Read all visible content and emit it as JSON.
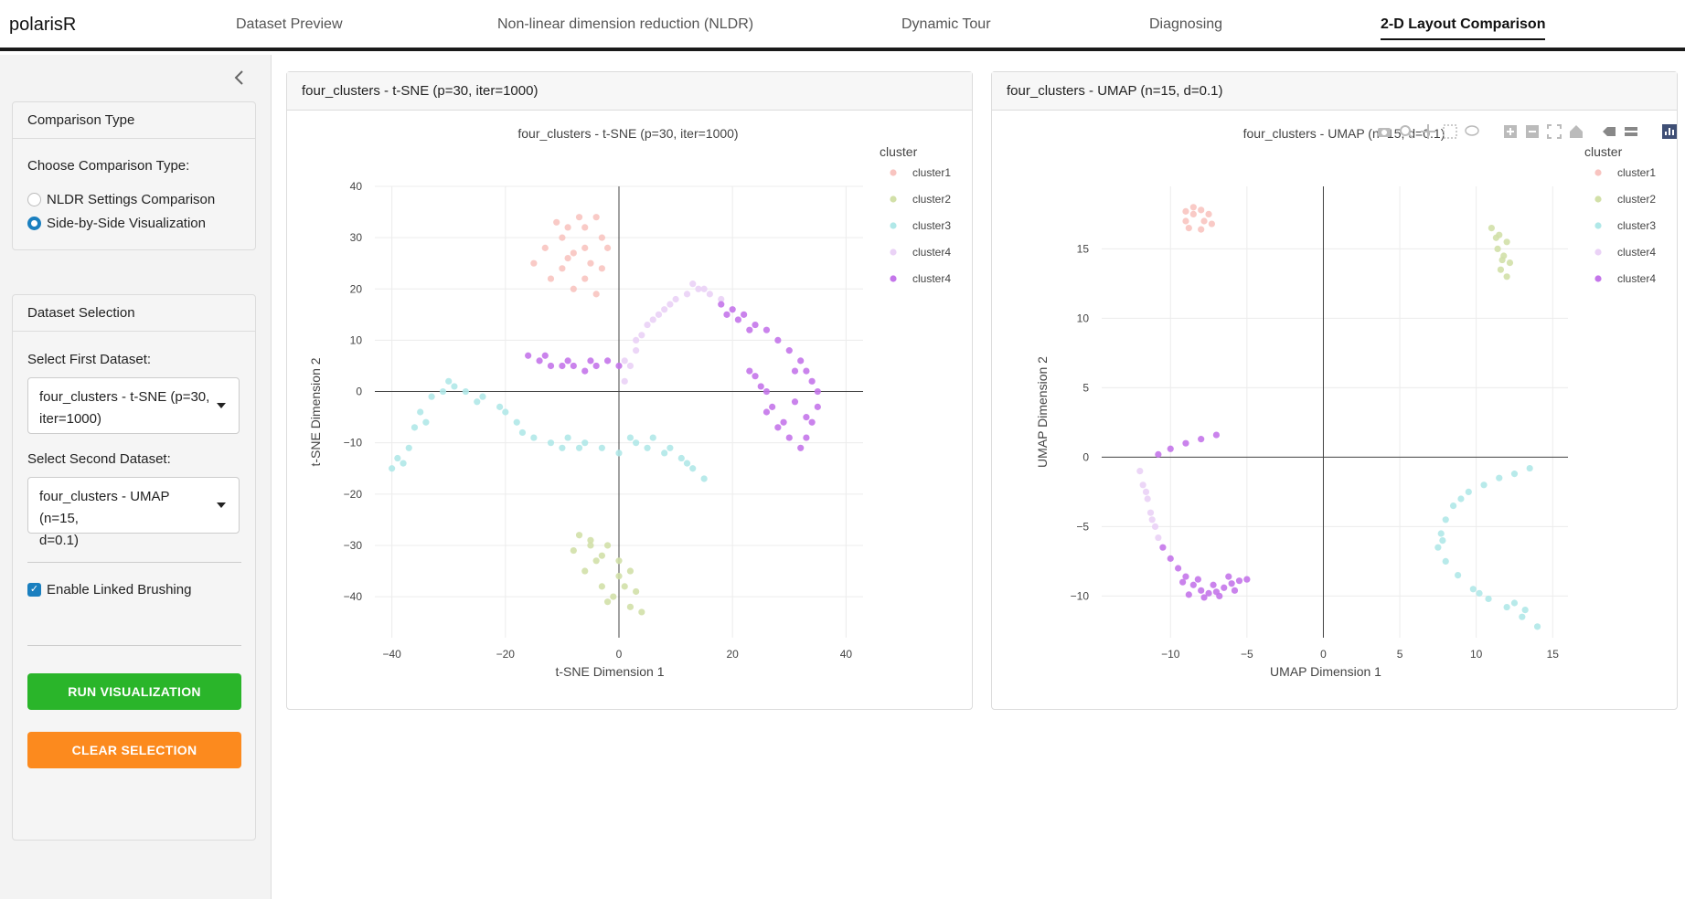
{
  "brand": "polarisR",
  "nav": {
    "tabs": [
      {
        "label": "Dataset Preview"
      },
      {
        "label": "Non-linear dimension reduction (NLDR)"
      },
      {
        "label": "Dynamic Tour"
      },
      {
        "label": "Diagnosing"
      },
      {
        "label": "2-D Layout Comparison"
      }
    ],
    "active": "2-D Layout Comparison"
  },
  "sidebar": {
    "collapse_icon": "chevron-left-icon",
    "comparison": {
      "title": "Comparison Type",
      "prompt": "Choose Comparison Type:",
      "options": [
        "NLDR Settings Comparison",
        "Side-by-Side Visualization"
      ],
      "selected": "Side-by-Side Visualization"
    },
    "dataset": {
      "title": "Dataset Selection",
      "first_label": "Select First Dataset:",
      "first_value_l1": "four_clusters - t-SNE (p=30,",
      "first_value_l2": "iter=1000)",
      "second_label": "Select Second Dataset:",
      "second_value_l1": "four_clusters - UMAP (n=15,",
      "second_value_l2": "d=0.1)",
      "linked_label": "Enable Linked Brushing",
      "linked_checked": true,
      "run_label": "RUN VISUALIZATION",
      "clear_label": "CLEAR SELECTION",
      "run_color": "#2ab52a",
      "clear_color": "#fc8a1e"
    }
  },
  "colors": {
    "cluster1": "#f8c4c0",
    "cluster2": "#d2e0a8",
    "cluster3": "#b0e8e8",
    "cluster4a": "#ead2f6",
    "cluster4b": "#c476ea"
  },
  "panels": {
    "left": {
      "header": "four_clusters - t-SNE (p=30, iter=1000)"
    },
    "right": {
      "header": "four_clusters - UMAP (n=15, d=0.1)"
    }
  },
  "modebar_icons": [
    "camera-icon",
    "zoom-icon",
    "pan-icon",
    "box-select-icon",
    "lasso-icon",
    "zoom-in-icon",
    "zoom-out-icon",
    "autoscale-icon",
    "home-icon",
    "hover-closest-icon",
    "hover-compare-icon",
    "plotly-logo-icon"
  ],
  "chart_data": [
    {
      "type": "scatter",
      "title": "four_clusters - t-SNE (p=30, iter=1000)",
      "xlabel": "t-SNE Dimension 1",
      "ylabel": "t-SNE Dimension 2",
      "xlim": [
        -43,
        43
      ],
      "ylim": [
        -48,
        40
      ],
      "xticks": [
        -40,
        -20,
        0,
        20,
        40
      ],
      "yticks": [
        -40,
        -30,
        -20,
        -10,
        0,
        10,
        20,
        30,
        40
      ],
      "legend_title": "cluster",
      "legend_position": "top-right",
      "grid": true,
      "series": [
        {
          "name": "cluster1",
          "color": "#f8c4c0",
          "points": [
            [
              -10,
              30
            ],
            [
              -8,
              27
            ],
            [
              -6,
              32
            ],
            [
              -4,
              34
            ],
            [
              -6,
              22
            ],
            [
              -10,
              24
            ],
            [
              -13,
              28
            ],
            [
              -12,
              22
            ],
            [
              -8,
              20
            ],
            [
              -5,
              25
            ],
            [
              -3,
              30
            ],
            [
              -2,
              28
            ],
            [
              -4,
              19
            ],
            [
              -9,
              32
            ],
            [
              -7,
              34
            ],
            [
              -15,
              25
            ],
            [
              -11,
              33
            ],
            [
              -3,
              24
            ],
            [
              -6,
              28
            ],
            [
              -9,
              26
            ]
          ]
        },
        {
          "name": "cluster2",
          "color": "#d2e0a8",
          "points": [
            [
              -7,
              -28
            ],
            [
              -5,
              -29
            ],
            [
              -3,
              -32
            ],
            [
              -6,
              -35
            ],
            [
              -2,
              -30
            ],
            [
              0,
              -36
            ],
            [
              -1,
              -40
            ],
            [
              2,
              -42
            ],
            [
              4,
              -43
            ],
            [
              -4,
              -33
            ],
            [
              1,
              -38
            ],
            [
              3,
              -39
            ],
            [
              -8,
              -31
            ],
            [
              -3,
              -38
            ],
            [
              0,
              -33
            ],
            [
              -5,
              -30
            ],
            [
              2,
              -35
            ],
            [
              -2,
              -41
            ]
          ]
        },
        {
          "name": "cluster3",
          "color": "#b0e8e8",
          "points": [
            [
              -40,
              -15
            ],
            [
              -38,
              -14
            ],
            [
              -37,
              -11
            ],
            [
              -36,
              -7
            ],
            [
              -35,
              -4
            ],
            [
              -33,
              -1
            ],
            [
              -31,
              0
            ],
            [
              -29,
              1
            ],
            [
              -27,
              0
            ],
            [
              -24,
              -1
            ],
            [
              -21,
              -3
            ],
            [
              -18,
              -6
            ],
            [
              -15,
              -9
            ],
            [
              -12,
              -10
            ],
            [
              -9,
              -9
            ],
            [
              -6,
              -10
            ],
            [
              -3,
              -11
            ],
            [
              0,
              -12
            ],
            [
              3,
              -10
            ],
            [
              6,
              -9
            ],
            [
              9,
              -11
            ],
            [
              11,
              -13
            ],
            [
              13,
              -15
            ],
            [
              15,
              -17
            ],
            [
              -39,
              -13
            ],
            [
              -34,
              -6
            ],
            [
              -25,
              -2
            ],
            [
              -17,
              -8
            ],
            [
              -7,
              -11
            ],
            [
              2,
              -9
            ],
            [
              8,
              -12
            ],
            [
              12,
              -14
            ],
            [
              -30,
              2
            ],
            [
              -20,
              -4
            ],
            [
              -10,
              -11
            ],
            [
              5,
              -11
            ]
          ]
        },
        {
          "name": "cluster4",
          "color": "#ead2f6",
          "points": [
            [
              1,
              2
            ],
            [
              2,
              5
            ],
            [
              3,
              8
            ],
            [
              4,
              11
            ],
            [
              6,
              14
            ],
            [
              8,
              16
            ],
            [
              10,
              18
            ],
            [
              12,
              19
            ],
            [
              14,
              20
            ],
            [
              16,
              19
            ],
            [
              18,
              18
            ],
            [
              5,
              13
            ],
            [
              9,
              17
            ],
            [
              13,
              21
            ],
            [
              3,
              10
            ],
            [
              1,
              6
            ],
            [
              7,
              15
            ],
            [
              15,
              20
            ]
          ]
        },
        {
          "name": "cluster4",
          "color": "#c476ea",
          "points": [
            [
              -16,
              7
            ],
            [
              -14,
              6
            ],
            [
              -12,
              5
            ],
            [
              -10,
              5
            ],
            [
              -8,
              5
            ],
            [
              -6,
              4
            ],
            [
              -4,
              5
            ],
            [
              -2,
              6
            ],
            [
              0,
              5
            ],
            [
              -13,
              7
            ],
            [
              -9,
              6
            ],
            [
              -5,
              6
            ],
            [
              18,
              17
            ],
            [
              20,
              16
            ],
            [
              22,
              15
            ],
            [
              24,
              13
            ],
            [
              26,
              12
            ],
            [
              28,
              10
            ],
            [
              30,
              8
            ],
            [
              32,
              6
            ],
            [
              33,
              4
            ],
            [
              34,
              2
            ],
            [
              35,
              0
            ],
            [
              35,
              -3
            ],
            [
              34,
              -6
            ],
            [
              33,
              -9
            ],
            [
              32,
              -11
            ],
            [
              30,
              -9
            ],
            [
              29,
              -6
            ],
            [
              27,
              -3
            ],
            [
              26,
              0
            ],
            [
              24,
              3
            ],
            [
              23,
              4
            ],
            [
              25,
              1
            ],
            [
              31,
              -2
            ],
            [
              33,
              -5
            ],
            [
              28,
              -7
            ],
            [
              26,
              -4
            ],
            [
              31,
              4
            ],
            [
              19,
              15
            ],
            [
              21,
              14
            ],
            [
              23,
              12
            ]
          ]
        }
      ]
    },
    {
      "type": "scatter",
      "title": "four_clusters - UMAP (n=15, d=0.1)",
      "xlabel": "UMAP Dimension 1",
      "ylabel": "UMAP Dimension 2",
      "xlim": [
        -14.5,
        16
      ],
      "ylim": [
        -13,
        19.5
      ],
      "xticks": [
        -10,
        -5,
        0,
        5,
        10,
        15
      ],
      "yticks": [
        -10,
        -5,
        0,
        5,
        10,
        15
      ],
      "legend_title": "cluster",
      "legend_position": "top-right",
      "grid": true,
      "series": [
        {
          "name": "cluster1",
          "color": "#f8c4c0",
          "points": [
            [
              -9,
              17
            ],
            [
              -8.5,
              17.5
            ],
            [
              -8,
              17.8
            ],
            [
              -7.5,
              17.5
            ],
            [
              -8.8,
              16.5
            ],
            [
              -8,
              16.4
            ],
            [
              -7.3,
              16.8
            ],
            [
              -8.5,
              18
            ],
            [
              -7.8,
              17
            ],
            [
              -9,
              17.7
            ]
          ]
        },
        {
          "name": "cluster2",
          "color": "#d2e0a8",
          "points": [
            [
              11,
              16.5
            ],
            [
              11.5,
              16
            ],
            [
              12,
              15.5
            ],
            [
              11.4,
              15
            ],
            [
              11.8,
              14.5
            ],
            [
              12.2,
              14
            ],
            [
              11.6,
              13.5
            ],
            [
              12,
              13
            ],
            [
              11.3,
              15.8
            ],
            [
              11.7,
              14.2
            ]
          ]
        },
        {
          "name": "cluster3",
          "color": "#b0e8e8",
          "points": [
            [
              13.5,
              -0.8
            ],
            [
              12.5,
              -1.2
            ],
            [
              11.5,
              -1.5
            ],
            [
              10.5,
              -2
            ],
            [
              9.5,
              -2.5
            ],
            [
              8.5,
              -3.5
            ],
            [
              8,
              -4.5
            ],
            [
              7.7,
              -5.5
            ],
            [
              7.5,
              -6.5
            ],
            [
              8,
              -7.5
            ],
            [
              8.8,
              -8.5
            ],
            [
              9.8,
              -9.5
            ],
            [
              10.8,
              -10.2
            ],
            [
              12,
              -10.8
            ],
            [
              13,
              -11.5
            ],
            [
              14,
              -12.2
            ],
            [
              13.2,
              -11
            ],
            [
              9,
              -3
            ],
            [
              7.8,
              -6
            ],
            [
              10.2,
              -9.8
            ],
            [
              12.5,
              -10.5
            ]
          ]
        },
        {
          "name": "cluster4",
          "color": "#ead2f6",
          "points": [
            [
              -12,
              -1
            ],
            [
              -11.8,
              -2
            ],
            [
              -11.5,
              -3
            ],
            [
              -11.3,
              -4
            ],
            [
              -11,
              -5
            ],
            [
              -10.8,
              -5.8
            ],
            [
              -11.6,
              -2.5
            ],
            [
              -11.2,
              -4.5
            ]
          ]
        },
        {
          "name": "cluster4",
          "color": "#c476ea",
          "points": [
            [
              -7,
              1.6
            ],
            [
              -8,
              1.3
            ],
            [
              -9,
              1
            ],
            [
              -10,
              0.6
            ],
            [
              -10.8,
              0.2
            ],
            [
              -10.5,
              -6.5
            ],
            [
              -10,
              -7.3
            ],
            [
              -9.5,
              -8
            ],
            [
              -9,
              -8.6
            ],
            [
              -8.5,
              -9.2
            ],
            [
              -8,
              -9.6
            ],
            [
              -7.5,
              -9.8
            ],
            [
              -7,
              -9.7
            ],
            [
              -6.5,
              -9.4
            ],
            [
              -6,
              -9.1
            ],
            [
              -5.5,
              -8.9
            ],
            [
              -5,
              -8.8
            ],
            [
              -9.2,
              -9
            ],
            [
              -8.2,
              -8.8
            ],
            [
              -7.2,
              -9.2
            ],
            [
              -6.2,
              -8.6
            ],
            [
              -8.8,
              -9.9
            ],
            [
              -7.8,
              -10.1
            ],
            [
              -6.8,
              -10
            ],
            [
              -5.8,
              -9.6
            ]
          ]
        }
      ]
    }
  ]
}
